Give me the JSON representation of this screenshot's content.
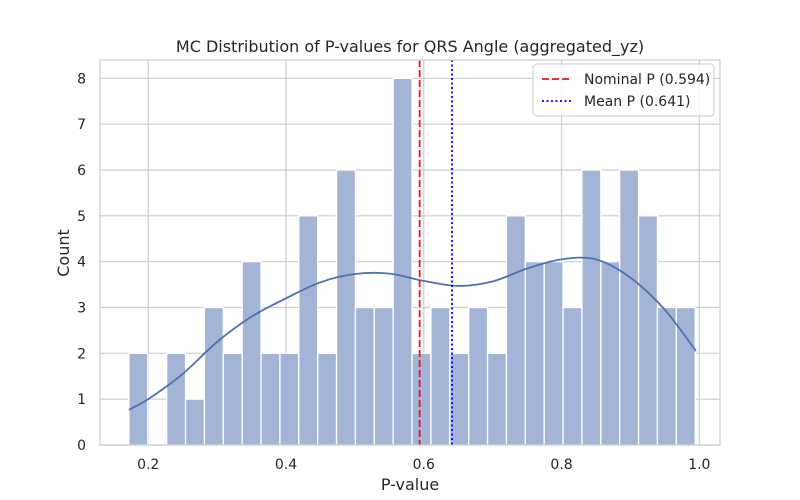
{
  "chart_data": {
    "type": "histogram",
    "title": "MC Distribution of P-values for QRS Angle (aggregated_yz)",
    "xlabel": "P-value",
    "ylabel": "Count",
    "xlim": [
      0.13,
      1.03
    ],
    "ylim": [
      0,
      8.4
    ],
    "xticks": [
      0.2,
      0.4,
      0.6,
      0.8,
      1.0
    ],
    "xtick_labels": [
      "0.2",
      "0.4",
      "0.6",
      "0.8",
      "1.0"
    ],
    "yticks": [
      0,
      1,
      2,
      3,
      4,
      5,
      6,
      7,
      8
    ],
    "ytick_labels": [
      "0",
      "1",
      "2",
      "3",
      "4",
      "5",
      "6",
      "7",
      "8"
    ],
    "grid": true,
    "legend_position": "top-right",
    "bins": {
      "start": 0.172,
      "width": 0.0274,
      "counts": [
        2,
        0,
        2,
        1,
        3,
        2,
        4,
        2,
        2,
        5,
        2,
        6,
        3,
        3,
        8,
        2,
        3,
        2,
        3,
        2,
        5,
        4,
        4,
        3,
        6,
        4,
        6,
        5,
        3,
        3
      ]
    },
    "kde": {
      "x": [
        0.172,
        0.2,
        0.25,
        0.3,
        0.35,
        0.4,
        0.45,
        0.5,
        0.55,
        0.6,
        0.65,
        0.7,
        0.75,
        0.8,
        0.85,
        0.9,
        0.95,
        0.995
      ],
      "y": [
        0.77,
        1.0,
        1.55,
        2.25,
        2.8,
        3.2,
        3.55,
        3.73,
        3.74,
        3.58,
        3.47,
        3.57,
        3.85,
        4.05,
        4.05,
        3.65,
        2.95,
        2.05
      ]
    },
    "reference_lines": [
      {
        "name": "Nominal P (0.594)",
        "x": 0.594,
        "color": "#e41a1c",
        "style": "dashed"
      },
      {
        "name": "Mean P (0.641)",
        "x": 0.641,
        "color": "#0000ff",
        "style": "dotted"
      }
    ],
    "colors": {
      "bar_fill": "#a3b4d6",
      "kde_line": "#4c72b0",
      "grid": "#cccccc",
      "axis_edge": "#cccccc"
    }
  }
}
